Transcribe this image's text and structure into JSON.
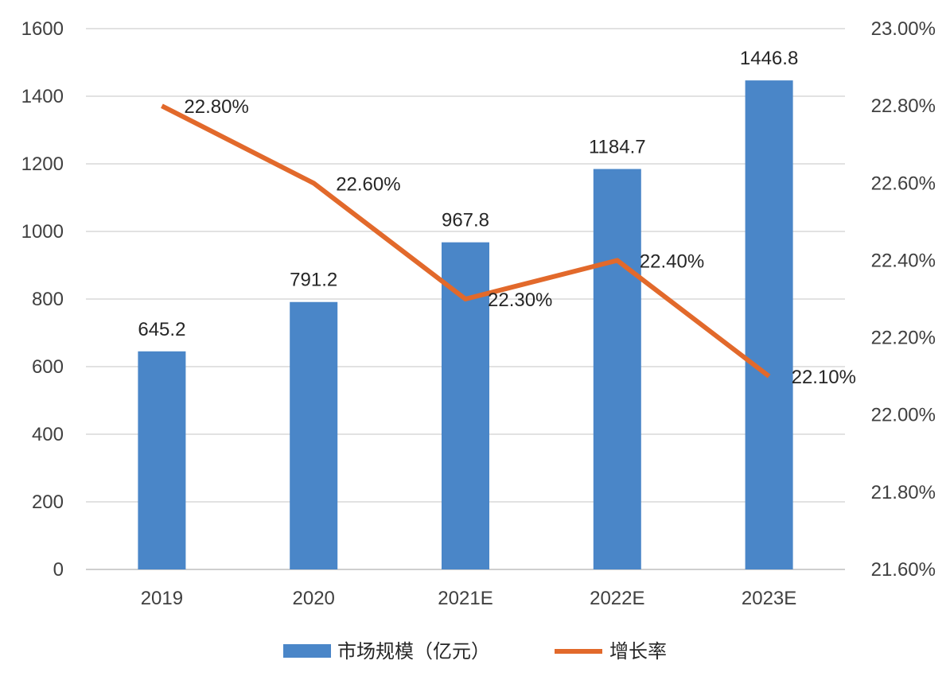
{
  "chart_data": {
    "type": "bar",
    "categories": [
      "2019",
      "2020",
      "2021E",
      "2022E",
      "2023E"
    ],
    "series": [
      {
        "name": "市场规模（亿元）",
        "type": "bar",
        "axis": "left",
        "values": [
          645.2,
          791.2,
          967.8,
          1184.7,
          1446.8
        ],
        "labels": [
          "645.2",
          "791.2",
          "967.8",
          "1184.7",
          "1446.8"
        ],
        "color": "#4a86c8"
      },
      {
        "name": "增长率",
        "type": "line",
        "axis": "right",
        "values": [
          22.8,
          22.6,
          22.3,
          22.4,
          22.1
        ],
        "labels": [
          "22.80%",
          "22.60%",
          "22.30%",
          "22.40%",
          "22.10%"
        ],
        "color": "#e2692b"
      }
    ],
    "y_left": {
      "lim": [
        0,
        1600
      ],
      "ticks": [
        "0",
        "200",
        "400",
        "600",
        "800",
        "1000",
        "1200",
        "1400",
        "1600"
      ]
    },
    "y_right": {
      "lim": [
        21.6,
        23.0
      ],
      "ticks": [
        "21.60%",
        "21.80%",
        "22.00%",
        "22.20%",
        "22.40%",
        "22.60%",
        "22.80%",
        "23.00%"
      ]
    },
    "grid": true,
    "legend_position": "bottom"
  }
}
